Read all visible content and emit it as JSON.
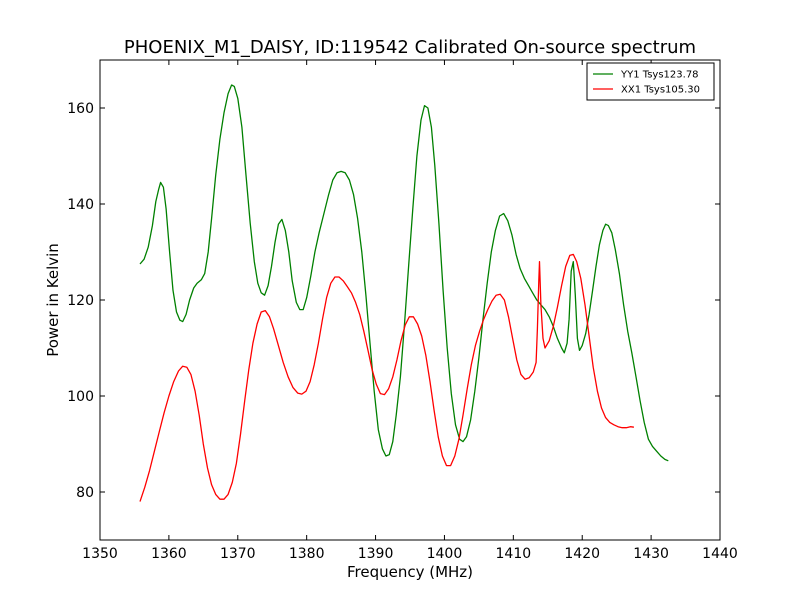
{
  "chart_data": {
    "type": "line",
    "title": "PHOENIX_M1_DAISY, ID:119542 Calibrated On-source spectrum",
    "xlabel": "Frequency (MHz)",
    "ylabel": "Power in Kelvin",
    "xlim": [
      1350,
      1440
    ],
    "ylim": [
      70,
      170
    ],
    "xticks": [
      1350,
      1360,
      1370,
      1380,
      1390,
      1400,
      1410,
      1420,
      1430,
      1440
    ],
    "yticks": [
      80,
      100,
      120,
      140,
      160
    ],
    "grid": false,
    "legend": "top-right",
    "series": [
      {
        "name": "YY1 Tsys123.78",
        "color": "#008000",
        "points": [
          [
            1355.8,
            127.5
          ],
          [
            1356.4,
            128.5
          ],
          [
            1357.0,
            131.0
          ],
          [
            1357.6,
            135.5
          ],
          [
            1358.1,
            140.5
          ],
          [
            1358.5,
            143.0
          ],
          [
            1358.8,
            144.5
          ],
          [
            1359.2,
            143.5
          ],
          [
            1359.6,
            139.0
          ],
          [
            1360.1,
            130.0
          ],
          [
            1360.6,
            122.0
          ],
          [
            1361.1,
            117.5
          ],
          [
            1361.6,
            115.8
          ],
          [
            1362.0,
            115.5
          ],
          [
            1362.5,
            117.0
          ],
          [
            1363.0,
            120.0
          ],
          [
            1363.6,
            122.5
          ],
          [
            1364.1,
            123.5
          ],
          [
            1364.7,
            124.2
          ],
          [
            1365.2,
            125.5
          ],
          [
            1365.7,
            130.0
          ],
          [
            1366.2,
            137.0
          ],
          [
            1366.8,
            146.0
          ],
          [
            1367.4,
            153.5
          ],
          [
            1368.0,
            159.0
          ],
          [
            1368.6,
            163.0
          ],
          [
            1369.1,
            164.8
          ],
          [
            1369.5,
            164.5
          ],
          [
            1370.0,
            162.0
          ],
          [
            1370.6,
            156.0
          ],
          [
            1371.2,
            146.0
          ],
          [
            1371.8,
            136.0
          ],
          [
            1372.4,
            128.0
          ],
          [
            1372.9,
            123.5
          ],
          [
            1373.4,
            121.5
          ],
          [
            1373.9,
            121.0
          ],
          [
            1374.4,
            123.0
          ],
          [
            1374.9,
            127.0
          ],
          [
            1375.4,
            132.0
          ],
          [
            1375.9,
            135.8
          ],
          [
            1376.4,
            136.8
          ],
          [
            1376.9,
            134.5
          ],
          [
            1377.4,
            130.0
          ],
          [
            1377.9,
            124.0
          ],
          [
            1378.5,
            119.5
          ],
          [
            1379.0,
            118.0
          ],
          [
            1379.5,
            118.0
          ],
          [
            1380.0,
            120.5
          ],
          [
            1380.6,
            125.0
          ],
          [
            1381.2,
            130.0
          ],
          [
            1381.8,
            134.0
          ],
          [
            1382.5,
            138.0
          ],
          [
            1383.2,
            142.0
          ],
          [
            1383.8,
            145.0
          ],
          [
            1384.4,
            146.5
          ],
          [
            1385.0,
            146.8
          ],
          [
            1385.6,
            146.5
          ],
          [
            1386.2,
            145.0
          ],
          [
            1386.8,
            142.0
          ],
          [
            1387.4,
            137.0
          ],
          [
            1388.0,
            130.0
          ],
          [
            1388.6,
            121.0
          ],
          [
            1389.2,
            111.0
          ],
          [
            1389.8,
            101.0
          ],
          [
            1390.4,
            93.0
          ],
          [
            1391.0,
            89.0
          ],
          [
            1391.5,
            87.5
          ],
          [
            1392.0,
            87.8
          ],
          [
            1392.5,
            90.5
          ],
          [
            1393.0,
            96.0
          ],
          [
            1393.6,
            104.0
          ],
          [
            1394.2,
            115.0
          ],
          [
            1394.8,
            127.0
          ],
          [
            1395.4,
            139.0
          ],
          [
            1396.0,
            150.0
          ],
          [
            1396.6,
            157.5
          ],
          [
            1397.1,
            160.5
          ],
          [
            1397.6,
            160.0
          ],
          [
            1398.1,
            156.0
          ],
          [
            1398.6,
            148.0
          ],
          [
            1399.2,
            136.0
          ],
          [
            1399.8,
            122.0
          ],
          [
            1400.4,
            110.0
          ],
          [
            1401.0,
            100.5
          ],
          [
            1401.6,
            94.0
          ],
          [
            1402.2,
            91.0
          ],
          [
            1402.7,
            90.5
          ],
          [
            1403.2,
            91.5
          ],
          [
            1403.8,
            95.0
          ],
          [
            1404.4,
            101.0
          ],
          [
            1405.0,
            108.0
          ],
          [
            1405.6,
            116.0
          ],
          [
            1406.2,
            123.5
          ],
          [
            1406.8,
            130.0
          ],
          [
            1407.4,
            134.5
          ],
          [
            1408.0,
            137.5
          ],
          [
            1408.6,
            138.0
          ],
          [
            1409.2,
            136.5
          ],
          [
            1409.8,
            133.5
          ],
          [
            1410.4,
            129.5
          ],
          [
            1411.0,
            126.5
          ],
          [
            1411.6,
            124.5
          ],
          [
            1412.2,
            123.0
          ],
          [
            1412.8,
            121.5
          ],
          [
            1413.4,
            120.0
          ],
          [
            1414.0,
            119.0
          ],
          [
            1414.6,
            118.0
          ],
          [
            1415.2,
            116.5
          ],
          [
            1415.8,
            114.5
          ],
          [
            1416.4,
            112.0
          ],
          [
            1417.0,
            110.0
          ],
          [
            1417.4,
            109.0
          ],
          [
            1417.8,
            111.0
          ],
          [
            1418.1,
            116.0
          ],
          [
            1418.4,
            126.0
          ],
          [
            1418.7,
            128.0
          ],
          [
            1419.0,
            121.0
          ],
          [
            1419.3,
            112.0
          ],
          [
            1419.6,
            109.5
          ],
          [
            1420.0,
            110.5
          ],
          [
            1420.5,
            113.0
          ],
          [
            1421.0,
            117.0
          ],
          [
            1421.5,
            122.0
          ],
          [
            1422.0,
            127.0
          ],
          [
            1422.5,
            131.5
          ],
          [
            1423.0,
            134.5
          ],
          [
            1423.4,
            135.8
          ],
          [
            1423.8,
            135.5
          ],
          [
            1424.3,
            134.0
          ],
          [
            1424.8,
            130.5
          ],
          [
            1425.4,
            125.5
          ],
          [
            1426.0,
            119.0
          ],
          [
            1426.6,
            113.5
          ],
          [
            1427.2,
            109.0
          ],
          [
            1427.8,
            104.0
          ],
          [
            1428.4,
            99.0
          ],
          [
            1429.0,
            94.5
          ],
          [
            1429.6,
            91.0
          ],
          [
            1430.2,
            89.5
          ],
          [
            1430.8,
            88.5
          ],
          [
            1431.4,
            87.5
          ],
          [
            1432.0,
            86.8
          ],
          [
            1432.5,
            86.5
          ]
        ]
      },
      {
        "name": "XX1 Tsys105.30",
        "color": "#ff0000",
        "points": [
          [
            1355.8,
            78.0
          ],
          [
            1356.5,
            81.0
          ],
          [
            1357.2,
            84.5
          ],
          [
            1357.9,
            88.5
          ],
          [
            1358.6,
            92.5
          ],
          [
            1359.3,
            96.5
          ],
          [
            1360.0,
            100.0
          ],
          [
            1360.7,
            103.0
          ],
          [
            1361.4,
            105.2
          ],
          [
            1362.0,
            106.2
          ],
          [
            1362.6,
            106.0
          ],
          [
            1363.2,
            104.5
          ],
          [
            1363.8,
            101.0
          ],
          [
            1364.4,
            96.0
          ],
          [
            1365.0,
            90.0
          ],
          [
            1365.6,
            85.0
          ],
          [
            1366.2,
            81.5
          ],
          [
            1366.8,
            79.5
          ],
          [
            1367.4,
            78.5
          ],
          [
            1368.0,
            78.5
          ],
          [
            1368.6,
            79.5
          ],
          [
            1369.2,
            82.0
          ],
          [
            1369.8,
            86.0
          ],
          [
            1370.4,
            92.0
          ],
          [
            1371.0,
            99.0
          ],
          [
            1371.6,
            105.5
          ],
          [
            1372.2,
            111.0
          ],
          [
            1372.8,
            115.0
          ],
          [
            1373.4,
            117.5
          ],
          [
            1374.0,
            117.8
          ],
          [
            1374.6,
            116.5
          ],
          [
            1375.2,
            114.0
          ],
          [
            1375.9,
            110.5
          ],
          [
            1376.6,
            107.0
          ],
          [
            1377.3,
            104.0
          ],
          [
            1378.0,
            101.8
          ],
          [
            1378.7,
            100.6
          ],
          [
            1379.3,
            100.4
          ],
          [
            1379.9,
            101.0
          ],
          [
            1380.5,
            103.0
          ],
          [
            1381.1,
            106.5
          ],
          [
            1381.7,
            111.0
          ],
          [
            1382.3,
            116.0
          ],
          [
            1382.9,
            120.5
          ],
          [
            1383.5,
            123.5
          ],
          [
            1384.1,
            124.8
          ],
          [
            1384.7,
            124.8
          ],
          [
            1385.3,
            124.0
          ],
          [
            1385.9,
            122.8
          ],
          [
            1386.5,
            121.5
          ],
          [
            1387.1,
            119.5
          ],
          [
            1387.7,
            117.0
          ],
          [
            1388.3,
            113.5
          ],
          [
            1388.9,
            109.5
          ],
          [
            1389.5,
            105.5
          ],
          [
            1390.1,
            102.5
          ],
          [
            1390.7,
            100.5
          ],
          [
            1391.3,
            100.3
          ],
          [
            1391.9,
            101.5
          ],
          [
            1392.5,
            104.0
          ],
          [
            1393.1,
            107.5
          ],
          [
            1393.7,
            111.5
          ],
          [
            1394.3,
            114.8
          ],
          [
            1394.9,
            116.5
          ],
          [
            1395.5,
            116.5
          ],
          [
            1396.1,
            115.0
          ],
          [
            1396.7,
            112.5
          ],
          [
            1397.3,
            108.5
          ],
          [
            1397.9,
            103.0
          ],
          [
            1398.5,
            97.0
          ],
          [
            1399.1,
            91.5
          ],
          [
            1399.7,
            87.5
          ],
          [
            1400.3,
            85.5
          ],
          [
            1400.9,
            85.5
          ],
          [
            1401.5,
            87.5
          ],
          [
            1402.1,
            91.0
          ],
          [
            1402.7,
            96.0
          ],
          [
            1403.3,
            101.5
          ],
          [
            1403.9,
            106.5
          ],
          [
            1404.5,
            110.5
          ],
          [
            1405.1,
            113.5
          ],
          [
            1405.7,
            116.0
          ],
          [
            1406.3,
            118.0
          ],
          [
            1406.9,
            119.8
          ],
          [
            1407.5,
            121.0
          ],
          [
            1408.1,
            121.2
          ],
          [
            1408.7,
            120.0
          ],
          [
            1409.3,
            116.5
          ],
          [
            1409.9,
            112.0
          ],
          [
            1410.5,
            107.5
          ],
          [
            1411.1,
            104.5
          ],
          [
            1411.7,
            103.5
          ],
          [
            1412.3,
            103.8
          ],
          [
            1412.9,
            105.0
          ],
          [
            1413.3,
            107.0
          ],
          [
            1413.5,
            114.0
          ],
          [
            1413.7,
            124.0
          ],
          [
            1413.8,
            128.0
          ],
          [
            1414.0,
            119.0
          ],
          [
            1414.3,
            112.0
          ],
          [
            1414.6,
            110.0
          ],
          [
            1415.2,
            111.5
          ],
          [
            1415.8,
            114.5
          ],
          [
            1416.4,
            118.5
          ],
          [
            1417.0,
            123.0
          ],
          [
            1417.6,
            127.0
          ],
          [
            1418.2,
            129.3
          ],
          [
            1418.7,
            129.5
          ],
          [
            1419.2,
            128.0
          ],
          [
            1419.8,
            124.5
          ],
          [
            1420.4,
            119.0
          ],
          [
            1421.0,
            112.5
          ],
          [
            1421.6,
            106.0
          ],
          [
            1422.2,
            101.0
          ],
          [
            1422.8,
            97.5
          ],
          [
            1423.4,
            95.5
          ],
          [
            1424.0,
            94.5
          ],
          [
            1424.6,
            94.0
          ],
          [
            1425.2,
            93.6
          ],
          [
            1425.8,
            93.4
          ],
          [
            1426.4,
            93.4
          ],
          [
            1427.0,
            93.6
          ],
          [
            1427.5,
            93.5
          ]
        ]
      }
    ]
  }
}
